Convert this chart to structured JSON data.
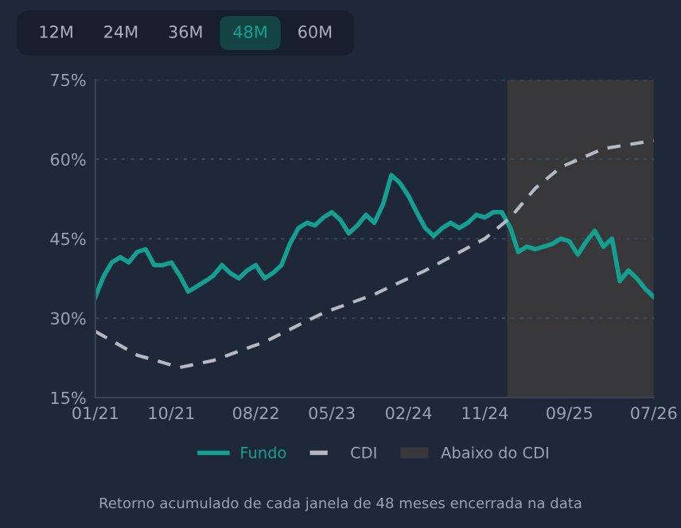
{
  "chart_data": {
    "type": "line",
    "annotations": [
      "12M",
      "24M",
      "36M",
      "48M",
      "60M",
      "Retorno acumulado de cada janela de 48 meses encerrada na data"
    ],
    "x": [
      "2021-01",
      "2021-02",
      "2021-03",
      "2021-04",
      "2021-05",
      "2021-06",
      "2021-07",
      "2021-08",
      "2021-09",
      "2021-10",
      "2021-11",
      "2021-12",
      "2022-01",
      "2022-02",
      "2022-03",
      "2022-04",
      "2022-05",
      "2022-06",
      "2022-07",
      "2022-08",
      "2022-09",
      "2022-10",
      "2022-11",
      "2022-12",
      "2023-01",
      "2023-02",
      "2023-03",
      "2023-04",
      "2023-05",
      "2023-06",
      "2023-07",
      "2023-08",
      "2023-09",
      "2023-10",
      "2023-11",
      "2023-12",
      "2024-01",
      "2024-02",
      "2024-03",
      "2024-04",
      "2024-05",
      "2024-06",
      "2024-07",
      "2024-08",
      "2024-09",
      "2024-10",
      "2024-11",
      "2024-12",
      "2025-01",
      "2025-02",
      "2025-03",
      "2025-04",
      "2025-05",
      "2025-06",
      "2025-07",
      "2025-08",
      "2025-09",
      "2025-10",
      "2025-11",
      "2025-12",
      "2026-01",
      "2026-02",
      "2026-03",
      "2026-04",
      "2026-05",
      "2026-06",
      "2026-07"
    ],
    "series": [
      {
        "name": "Fundo",
        "color": "#14a090",
        "line_style": "solid",
        "values": [
          34,
          38,
          40.5,
          41.5,
          40.5,
          42.5,
          43,
          40,
          40,
          40.5,
          38,
          35,
          36,
          37,
          38,
          40,
          38.5,
          37.5,
          39,
          40,
          37.5,
          38.5,
          40,
          44,
          47,
          48,
          47.5,
          49,
          50,
          48.5,
          46,
          47.5,
          49.5,
          48,
          51.5,
          57,
          55.5,
          53,
          50,
          47,
          45.5,
          47,
          48,
          47,
          48,
          49.5,
          49,
          50,
          50,
          47,
          42.5,
          43.5,
          43,
          43.5,
          44,
          45,
          44.5,
          42,
          44.5,
          46.5,
          43.5,
          45,
          37,
          39,
          37.5,
          35.5,
          34
        ]
      },
      {
        "name": "CDI",
        "color": "#b4b9c4",
        "line_style": "dashed",
        "x": [
          "2021-01",
          "2021-06",
          "2021-11",
          "2022-03",
          "2022-09",
          "2023-02",
          "2023-04",
          "2023-10",
          "2024-04",
          "2024-11",
          "2025-02",
          "2025-05",
          "2025-08",
          "2026-01",
          "2026-07"
        ],
        "values": [
          27.5,
          23,
          20.7,
          22,
          25.5,
          29.5,
          31,
          34.5,
          39,
          45,
          49,
          54.5,
          58.5,
          62,
          63.5
        ]
      }
    ],
    "bands": [
      {
        "axis": "x",
        "from": "2025-01-20",
        "to": "2026-07",
        "label": "Abaixo do CDI",
        "color": "#38383a"
      }
    ],
    "xlim": [
      "2021-01",
      "2026-07"
    ],
    "xticks": [
      {
        "value": "2021-01",
        "label": "01/21"
      },
      {
        "value": "2021-10",
        "label": "10/21"
      },
      {
        "value": "2022-08",
        "label": "08/22"
      },
      {
        "value": "2023-05",
        "label": "05/23"
      },
      {
        "value": "2024-02",
        "label": "02/24"
      },
      {
        "value": "2024-11",
        "label": "11/24"
      },
      {
        "value": "2025-09",
        "label": "09/25"
      },
      {
        "value": "2026-07",
        "label": "07/26"
      }
    ],
    "ylim": [
      15,
      75
    ],
    "yticks": [
      {
        "value": 15,
        "label": "15%"
      },
      {
        "value": 30,
        "label": "30%"
      },
      {
        "value": 45,
        "label": "45%"
      },
      {
        "value": 60,
        "label": "60%"
      },
      {
        "value": 75,
        "label": "75%"
      }
    ],
    "grid": "y",
    "legend": "bottom",
    "marker": "none"
  }
}
